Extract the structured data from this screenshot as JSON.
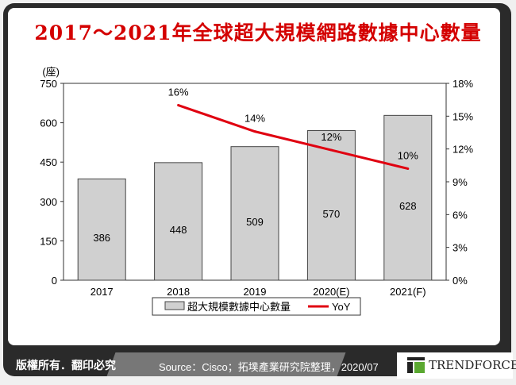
{
  "title": "2017～2021年全球超大規模網路數據中心數量",
  "footer": {
    "copyright": "版權所有．翻印必究",
    "source": "Source：Cisco；拓墣產業研究院整理，2020/07",
    "logo": "TRENDFORCE"
  },
  "colors": {
    "title": "#d40000",
    "bar": "#d0d0d0",
    "line": "#e00010"
  },
  "chart_data": {
    "type": "bar+line",
    "categories": [
      "2017",
      "2018",
      "2019",
      "2020(E)",
      "2021(F)"
    ],
    "y_unit_label": "(座)",
    "ylim": [
      0,
      750
    ],
    "yticks": [
      "0",
      "150",
      "300",
      "450",
      "600",
      "750"
    ],
    "y2lim": [
      0,
      18
    ],
    "y2ticks": [
      "0%",
      "3%",
      "6%",
      "9%",
      "12%",
      "15%",
      "18%"
    ],
    "series": [
      {
        "name": "超大規模數據中心數量",
        "type": "bar",
        "values": [
          386,
          448,
          509,
          570,
          628
        ],
        "labels": [
          "386",
          "448",
          "509",
          "570",
          "628"
        ]
      },
      {
        "name": "YoY",
        "type": "line",
        "axis": "right",
        "values": [
          null,
          16,
          13.6,
          11.9,
          10.2
        ],
        "labels": [
          "",
          "16%",
          "14%",
          "12%",
          "10%"
        ]
      }
    ],
    "legend": "bottom",
    "grid": false
  }
}
